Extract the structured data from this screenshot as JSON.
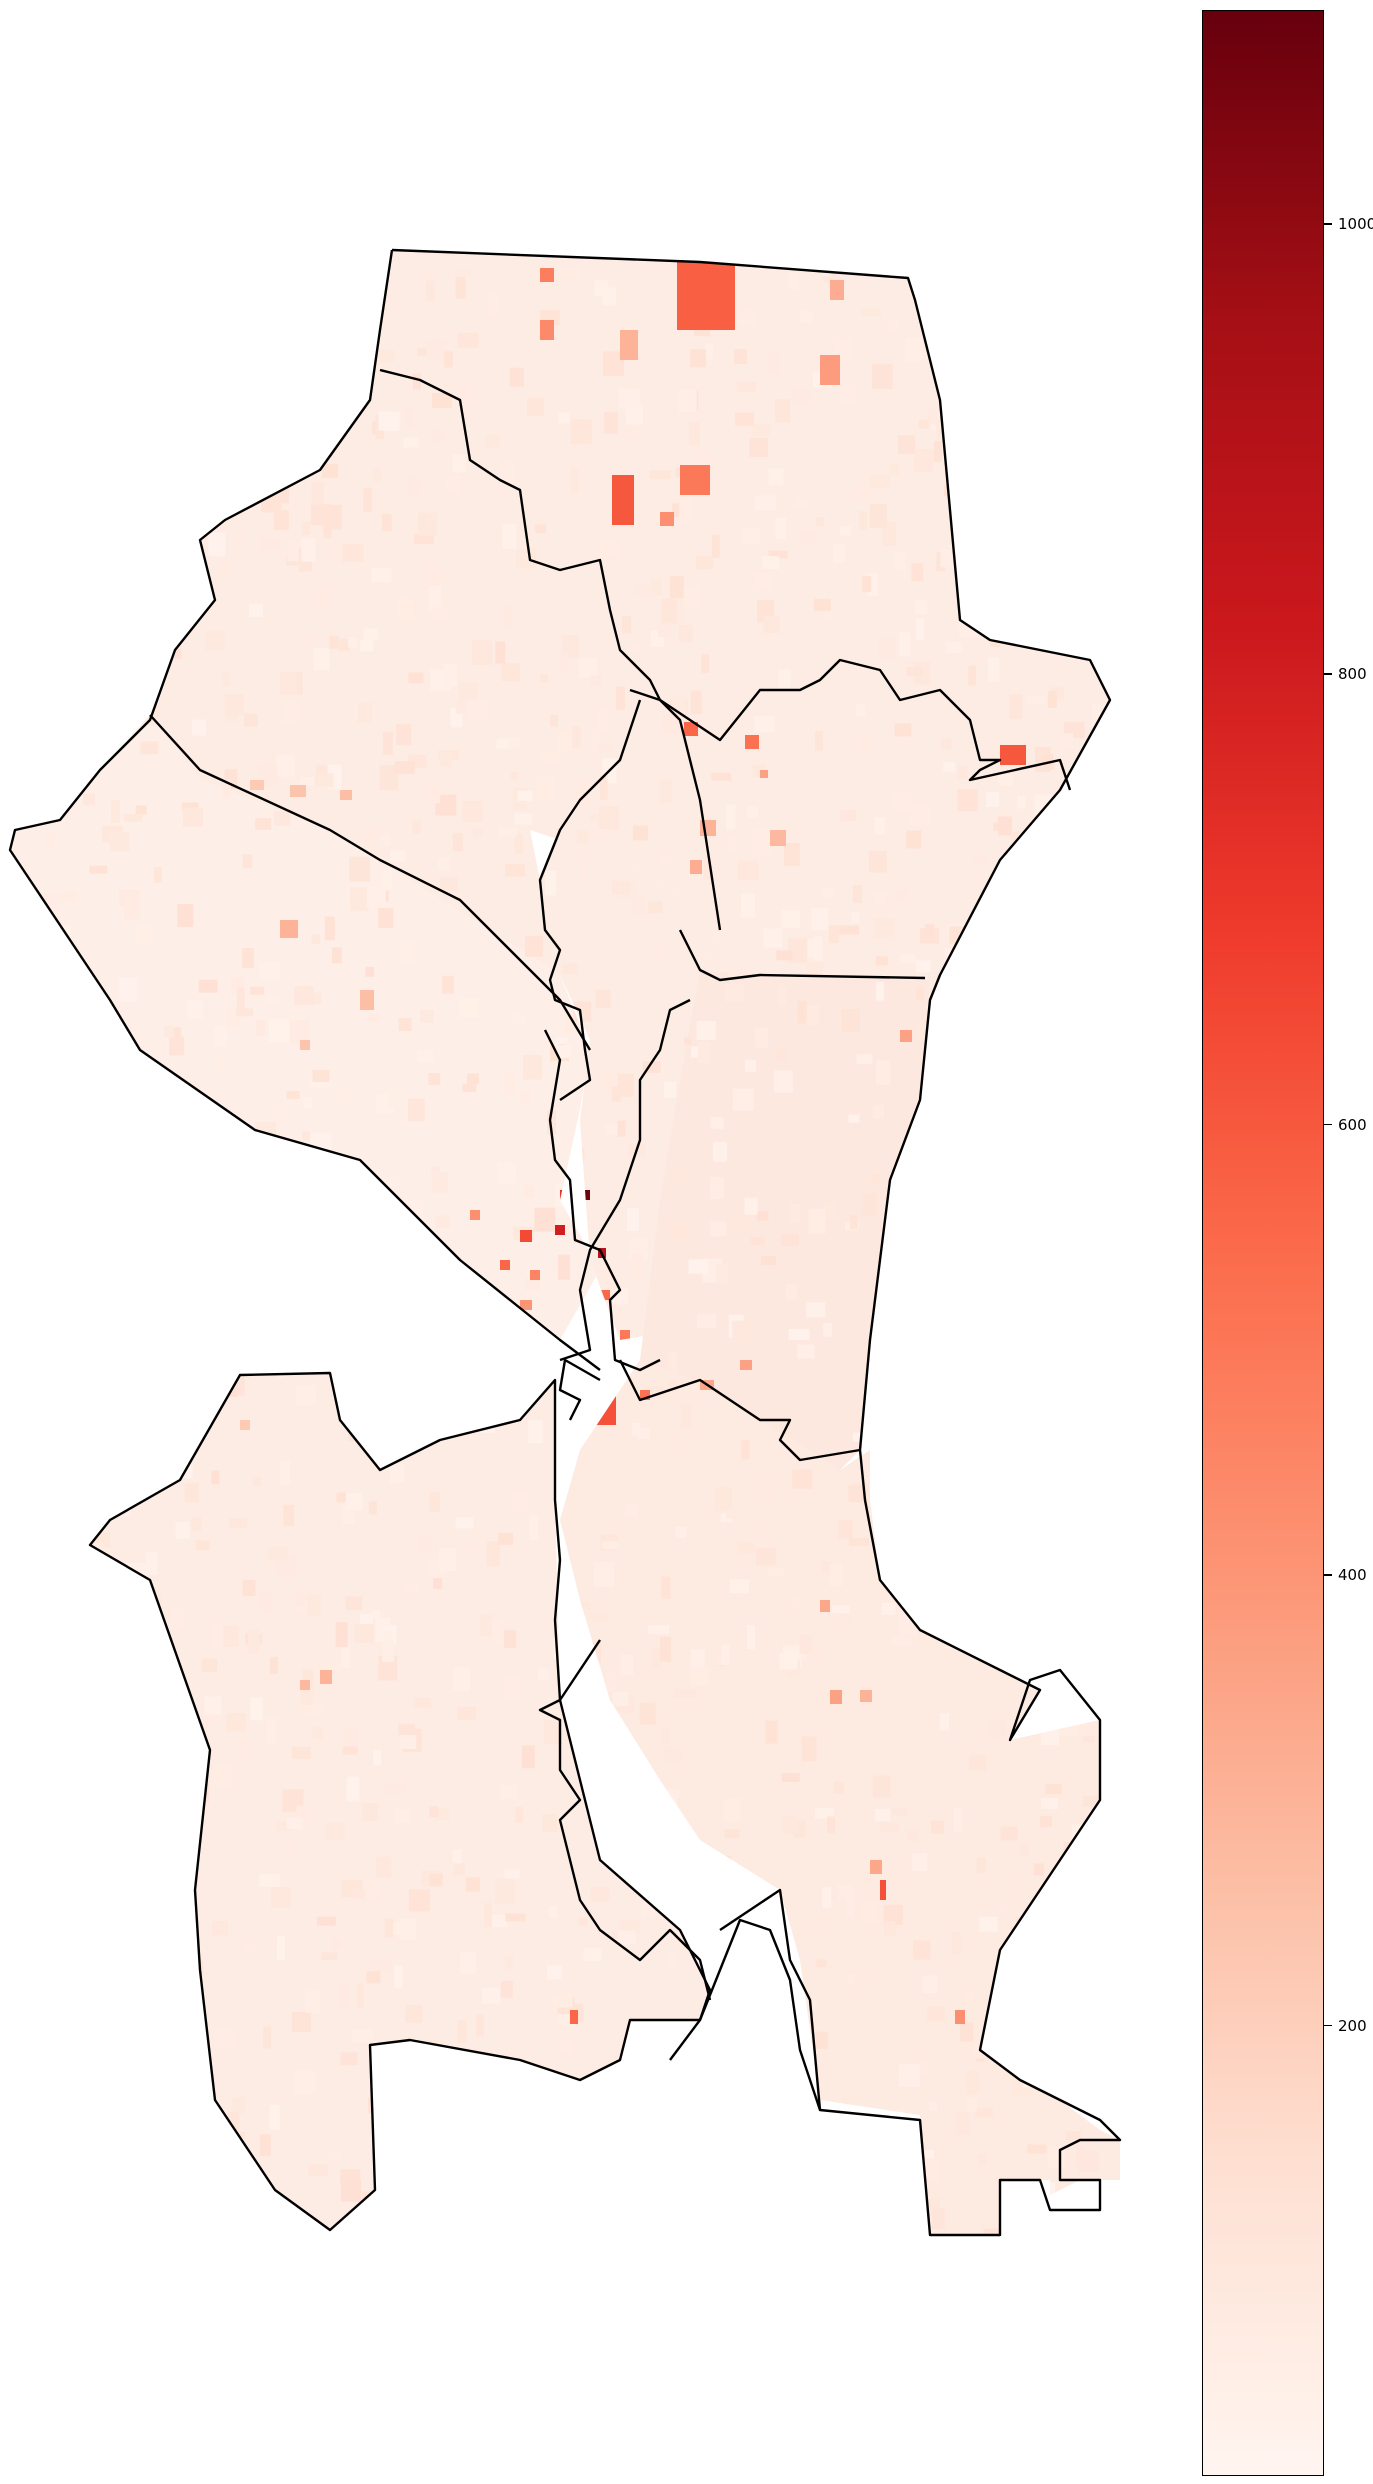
{
  "colorbar": {
    "colormap": "Reds",
    "range": [
      0,
      1095
    ],
    "ticks": [
      {
        "value": 200,
        "label": "200"
      },
      {
        "value": 400,
        "label": "400"
      },
      {
        "value": 600,
        "label": "600"
      },
      {
        "value": 800,
        "label": "800"
      },
      {
        "value": 1000,
        "label": "1000"
      }
    ],
    "colors": [
      "#fff5f0",
      "#fee0d2",
      "#fcbba1",
      "#fc9272",
      "#fb6a4a",
      "#ef3b2c",
      "#cb181d",
      "#a50f15",
      "#67000d"
    ]
  },
  "map": {
    "base_fill": "#fee9df",
    "boundary_color": "#000000",
    "water_color": "#ffffff",
    "districts": 7,
    "hotspot_values": [
      1080,
      950,
      720,
      640,
      600,
      560,
      520,
      480,
      460,
      420,
      400,
      360,
      320,
      300,
      280,
      260,
      240,
      220,
      200,
      180,
      160,
      140,
      120,
      100
    ]
  }
}
